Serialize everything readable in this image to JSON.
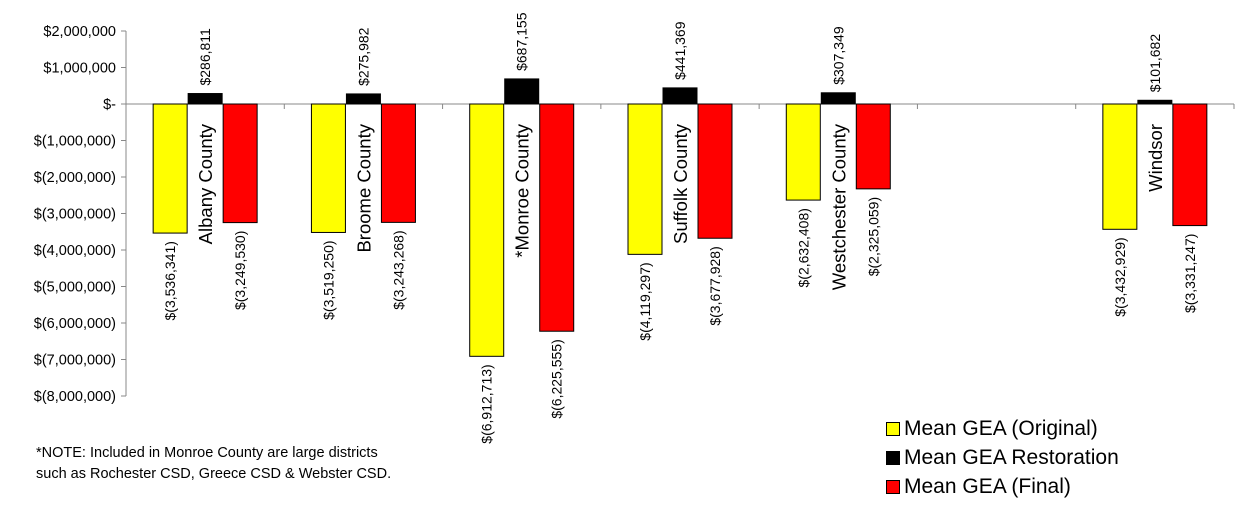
{
  "chart_data": {
    "type": "bar",
    "categories": [
      "Albany County",
      "Broome County",
      "*Monroe County",
      "Suffolk County",
      "Westchester County",
      "",
      "Windsor"
    ],
    "series": [
      {
        "name": "Mean GEA (Original)",
        "color": "#FFFF00",
        "values": [
          -3536341,
          -3519250,
          -6912713,
          -4119297,
          -2632408,
          null,
          -3432929
        ],
        "labels": [
          "$(3,536,341)",
          "$(3,519,250)",
          "$(6,912,713)",
          "$(4,119,297)",
          "$(2,632,408)",
          "",
          "$(3,432,929)"
        ]
      },
      {
        "name": "Mean GEA Restoration",
        "color": "#000000",
        "values": [
          286811,
          275982,
          687155,
          441369,
          307349,
          null,
          101682
        ],
        "labels": [
          "$286,811",
          "$275,982",
          "$687,155",
          "$441,369",
          "$307,349",
          "",
          "$101,682"
        ]
      },
      {
        "name": "Mean GEA (Final)",
        "color": "#FF0000",
        "values": [
          -3249530,
          -3243268,
          -6225555,
          -3677928,
          -2325059,
          null,
          -3331247
        ],
        "labels": [
          "$(3,249,530)",
          "$(3,243,268)",
          "$(6,225,555)",
          "$(3,677,928)",
          "$(2,325,059)",
          "",
          "$(3,331,247)"
        ]
      }
    ],
    "ylim": [
      -8000000,
      2000000
    ],
    "yticks": [
      2000000,
      1000000,
      0,
      -1000000,
      -2000000,
      -3000000,
      -4000000,
      -5000000,
      -6000000,
      -7000000,
      -8000000
    ],
    "ytick_labels": [
      "$2,000,000",
      "$1,000,000",
      "$-",
      "$(1,000,000)",
      "$(2,000,000)",
      "$(3,000,000)",
      "$(4,000,000)",
      "$(5,000,000)",
      "$(6,000,000)",
      "$(7,000,000)",
      "$(8,000,000)"
    ],
    "grid": false,
    "legend_position": "bottom-right",
    "title": "",
    "xlabel": "",
    "ylabel": ""
  },
  "note": {
    "line1": "*NOTE: Included in Monroe County are large districts",
    "line2": "such as Rochester CSD, Greece CSD & Webster CSD."
  },
  "legend": [
    {
      "label": "Mean GEA (Original)",
      "color": "#FFFF00"
    },
    {
      "label": "Mean GEA Restoration",
      "color": "#000000"
    },
    {
      "label": "Mean GEA (Final)",
      "color": "#FF0000"
    }
  ]
}
